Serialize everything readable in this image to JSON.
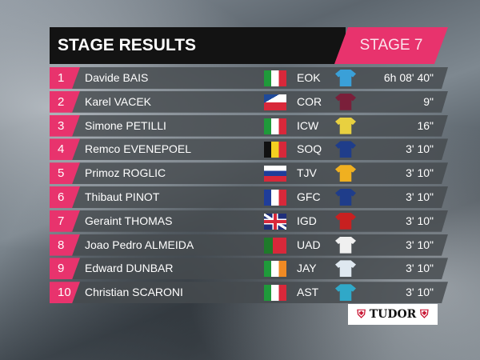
{
  "header": {
    "title": "STAGE RESULTS",
    "stage": "STAGE 7"
  },
  "colors": {
    "accent": "#e8336d",
    "header_bg": "#131313"
  },
  "rows": [
    {
      "rank": "1",
      "name": "Davide BAIS",
      "flag": "italy",
      "code": "EOK",
      "jersey": "#3aa0d8",
      "time": "6h 08' 40\""
    },
    {
      "rank": "2",
      "name": "Karel VACEK",
      "flag": "czechia",
      "code": "COR",
      "jersey": "#7a1f3a",
      "time": "9\""
    },
    {
      "rank": "3",
      "name": "Simone PETILLI",
      "flag": "italy",
      "code": "ICW",
      "jersey": "#e8d040",
      "time": "16\""
    },
    {
      "rank": "4",
      "name": "Remco EVENEPOEL",
      "flag": "belgium",
      "code": "SOQ",
      "jersey": "#1f3d8a",
      "time": "3' 10\""
    },
    {
      "rank": "5",
      "name": "Primoz ROGLIC",
      "flag": "slovenia",
      "code": "TJV",
      "jersey": "#f0b020",
      "time": "3' 10\""
    },
    {
      "rank": "6",
      "name": "Thibaut PINOT",
      "flag": "france",
      "code": "GFC",
      "jersey": "#1f3d8a",
      "time": "3' 10\""
    },
    {
      "rank": "7",
      "name": "Geraint THOMAS",
      "flag": "uk",
      "code": "IGD",
      "jersey": "#c82020",
      "time": "3' 10\""
    },
    {
      "rank": "8",
      "name": "Joao Pedro ALMEIDA",
      "flag": "portugal",
      "code": "UAD",
      "jersey": "#f0f0f0",
      "time": "3' 10\""
    },
    {
      "rank": "9",
      "name": "Edward DUNBAR",
      "flag": "ireland",
      "code": "JAY",
      "jersey": "#dfe8f0",
      "time": "3' 10\""
    },
    {
      "rank": "10",
      "name": "Christian SCARONI",
      "flag": "italy",
      "code": "AST",
      "jersey": "#30a8c8",
      "time": "3' 10\""
    }
  ],
  "sponsor": {
    "text": "TUDOR",
    "icon": "shield-icon"
  }
}
